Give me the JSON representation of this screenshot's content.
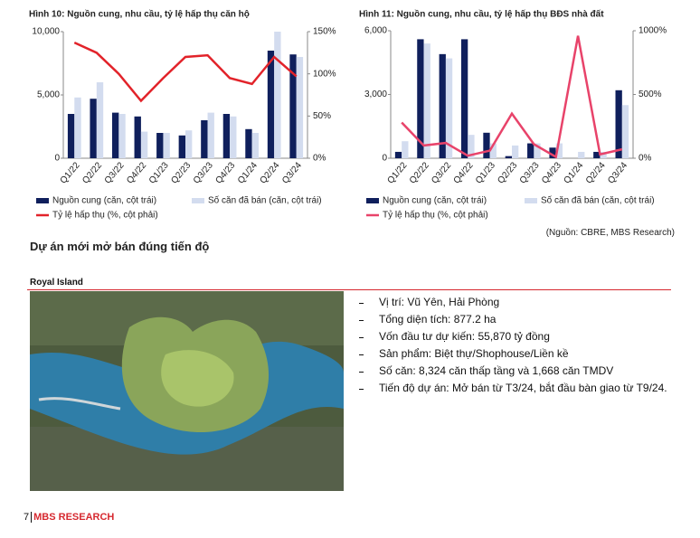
{
  "chart_data": [
    {
      "type": "bar-line",
      "title": "Hình 10: Nguồn cung, nhu cầu, tỷ lệ hấp thụ căn hộ",
      "categories": [
        "Q1/22",
        "Q2/22",
        "Q3/22",
        "Q4/22",
        "Q1/23",
        "Q2/23",
        "Q3/23",
        "Q4/23",
        "Q1/24",
        "Q2/24",
        "Q3/24"
      ],
      "series": [
        {
          "name": "Nguồn cung (căn, cột trái)",
          "color": "#0f1f5c",
          "values": [
            3500,
            4700,
            3600,
            3300,
            2000,
            1800,
            3000,
            3500,
            2300,
            8500,
            8200
          ]
        },
        {
          "name": "Số căn đã bán (căn, cột trái)",
          "color": "#d3dcef",
          "values": [
            4800,
            6000,
            3500,
            2100,
            2000,
            2200,
            3600,
            3300,
            2000,
            10000,
            8000
          ]
        },
        {
          "name": "Tỷ lệ hấp thụ (%, cột phải)",
          "color": "#e2232a",
          "axis": "y2",
          "values": [
            137,
            125,
            100,
            68,
            95,
            120,
            122,
            95,
            88,
            120,
            97
          ]
        }
      ],
      "ylim": [
        0,
        10000
      ],
      "yticks": [
        0,
        {
          "value": 5000,
          "label": "5,000"
        },
        {
          "value": 10000,
          "label": "10,000"
        }
      ],
      "y2lim": [
        0,
        150
      ],
      "y2ticks": [
        {
          "value": 0,
          "label": "0%"
        },
        {
          "value": 50,
          "label": "50%"
        },
        {
          "value": 100,
          "label": "100%"
        },
        {
          "value": 150,
          "label": "150%"
        }
      ]
    },
    {
      "type": "bar-line",
      "title": "Hình 11: Nguồn cung, nhu cầu, tỷ lệ hấp thụ BĐS nhà đất",
      "categories": [
        "Q1/22",
        "Q2/22",
        "Q3/22",
        "Q4/22",
        "Q1/23",
        "Q2/23",
        "Q3/23",
        "Q4/23",
        "Q1/24",
        "Q2/24",
        "Q3/24"
      ],
      "series": [
        {
          "name": "Nguồn cung (căn, cột trái)",
          "color": "#0f1f5c",
          "values": [
            300,
            5600,
            4900,
            5600,
            1200,
            100,
            700,
            500,
            0,
            300,
            3200
          ]
        },
        {
          "name": "Số căn đã bán (căn, cột trái)",
          "color": "#d3dcef",
          "values": [
            800,
            5400,
            4700,
            1100,
            700,
            600,
            700,
            700,
            300,
            300,
            2500
          ]
        },
        {
          "name": "Tỷ lệ hấp thụ (%, cột phải)",
          "color": "#e8436a",
          "axis": "y2",
          "values": [
            280,
            100,
            120,
            20,
            60,
            350,
            110,
            10,
            960,
            30,
            70
          ]
        }
      ],
      "ylim": [
        0,
        6000
      ],
      "yticks": [
        0,
        {
          "value": 3000,
          "label": "3,000"
        },
        {
          "value": 6000,
          "label": "6,000"
        }
      ],
      "y2lim": [
        0,
        1000
      ],
      "y2ticks": [
        {
          "value": 0,
          "label": "0%"
        },
        {
          "value": 500,
          "label": "500%"
        },
        {
          "value": 1000,
          "label": "1000%"
        }
      ]
    }
  ],
  "source": "(Nguồn: CBRE, MBS Research)",
  "section_title": "Dự án mới mở bán đúng tiến độ",
  "project": {
    "name": "Royal Island",
    "bullets": [
      "Vị trí: Vũ Yên, Hải Phòng",
      "Tổng diện tích: 877.2 ha",
      "Vốn đầu tư dự kiến: 55,870 tỷ đồng",
      "Sản phẩm: Biệt thự/Shophouse/Liền kề",
      "Số căn: 8,324 căn thấp tầng và 1,668 căn TMDV",
      "Tiến độ dự án: Mở bán từ T3/24, bắt đầu bàn giao từ T9/24."
    ]
  },
  "footer": {
    "page": "7",
    "brand": "MBS RESEARCH"
  }
}
